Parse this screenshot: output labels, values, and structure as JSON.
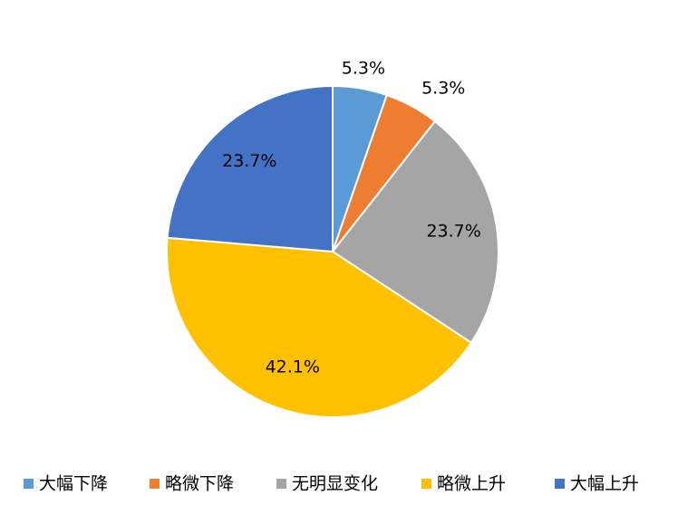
{
  "chart_data": {
    "type": "pie",
    "categories": [
      "大幅下降",
      "略微下降",
      "无明显变化",
      "略微上升",
      "大幅上升"
    ],
    "values": [
      5.3,
      5.3,
      23.7,
      42.1,
      23.7
    ],
    "value_labels": [
      "5.3%",
      "5.3%",
      "23.7%",
      "42.1%",
      "23.7%"
    ],
    "colors": [
      "#5b9bd5",
      "#ed7d31",
      "#a5a5a5",
      "#ffc000",
      "#4472c4"
    ],
    "legend": "bottom"
  }
}
